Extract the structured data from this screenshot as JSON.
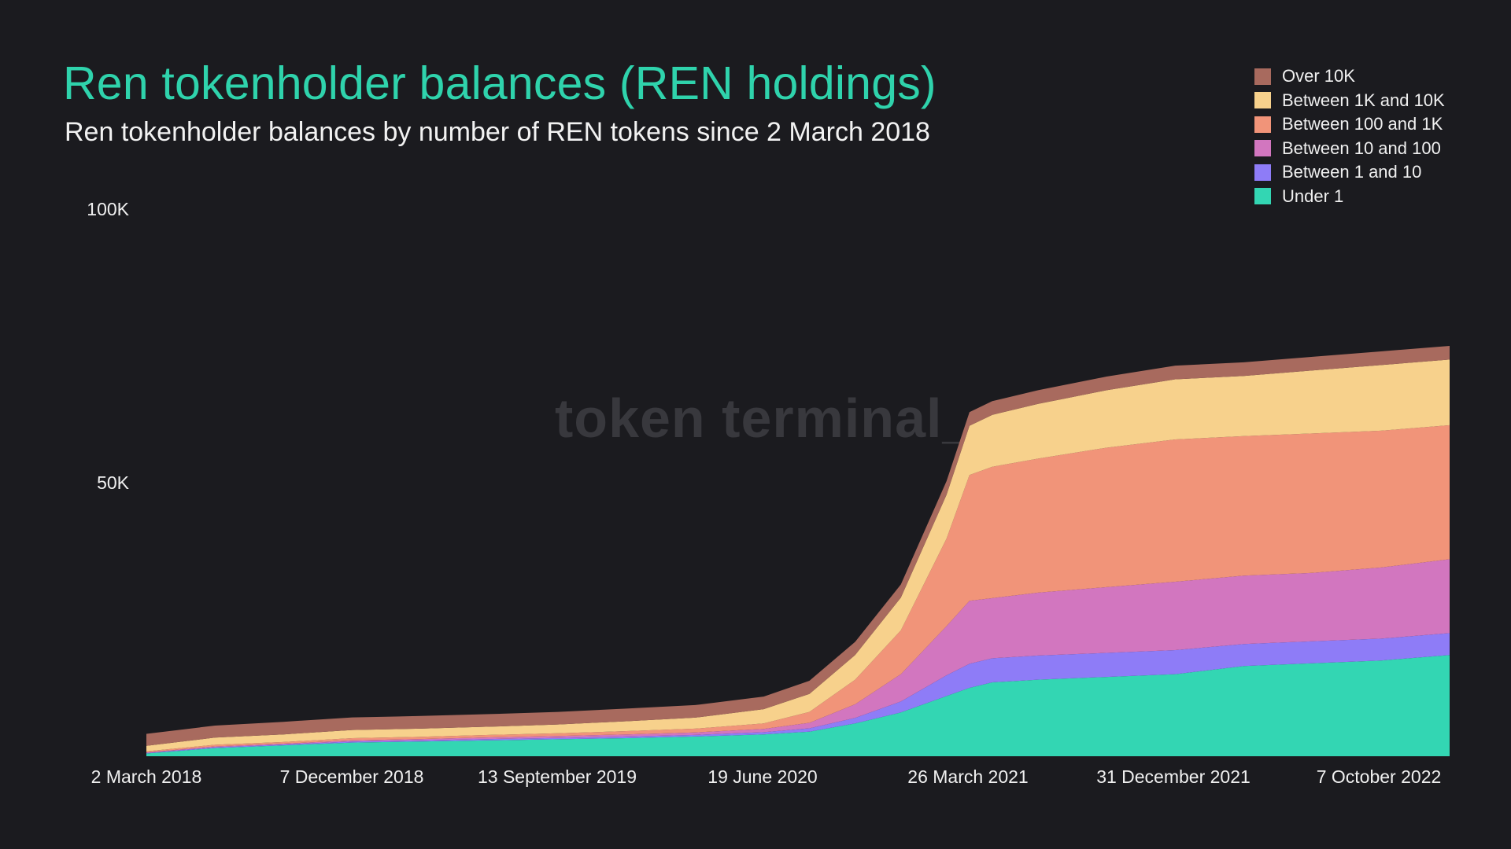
{
  "title": "Ren tokenholder balances (REN holdings)",
  "subtitle": "Ren tokenholder balances by number of REN tokens since 2 March 2018",
  "watermark": "token terminal_",
  "chart_data": {
    "type": "area",
    "stacked": true,
    "title": "Ren tokenholder balances (REN holdings)",
    "subtitle": "Ren tokenholder balances by number of REN tokens since 2 March 2018",
    "xlabel": "",
    "ylabel": "",
    "ylim": [
      0,
      100000
    ],
    "y_ticks": [
      50000,
      100000
    ],
    "y_tick_labels": [
      "50K",
      "100K"
    ],
    "x_tick_labels": [
      "2 March 2018",
      "7 December 2018",
      "13 September 2019",
      "19 June 2020",
      "26 March 2021",
      "31 December 2021",
      "7 October 2022"
    ],
    "grid": false,
    "legend_position": "top-right",
    "x": [
      "2018-03",
      "2018-06",
      "2018-09",
      "2018-12",
      "2019-03",
      "2019-06",
      "2019-09",
      "2019-12",
      "2020-03",
      "2020-06",
      "2020-08",
      "2020-10",
      "2020-12",
      "2021-02",
      "2021-03",
      "2021-04",
      "2021-06",
      "2021-09",
      "2021-12",
      "2022-03",
      "2022-06",
      "2022-09",
      "2022-12"
    ],
    "series": [
      {
        "name": "Under 1",
        "color": "#33d6b3",
        "values": [
          500,
          1500,
          2000,
          2500,
          2700,
          2900,
          3100,
          3300,
          3600,
          4000,
          4500,
          6000,
          8000,
          11000,
          12500,
          13500,
          14000,
          14500,
          15000,
          16500,
          17000,
          17500,
          18500
        ]
      },
      {
        "name": "Between 1 and 10",
        "color": "#8e7cf7",
        "values": [
          100,
          150,
          150,
          200,
          200,
          250,
          250,
          300,
          300,
          400,
          600,
          1000,
          2000,
          3800,
          4400,
          4400,
          4400,
          4400,
          4400,
          4000,
          4000,
          4000,
          4000
        ]
      },
      {
        "name": "Between 10 and 100",
        "color": "#d276bf",
        "values": [
          100,
          150,
          150,
          200,
          250,
          300,
          350,
          400,
          450,
          600,
          1000,
          2500,
          5000,
          9000,
          11500,
          11000,
          11500,
          12000,
          12500,
          12500,
          12500,
          13000,
          13500
        ]
      },
      {
        "name": "Between 100 and 1K",
        "color": "#f19479",
        "values": [
          200,
          300,
          300,
          400,
          400,
          450,
          500,
          600,
          700,
          1000,
          2000,
          4500,
          8000,
          16000,
          23000,
          24000,
          24500,
          25500,
          26000,
          25500,
          25500,
          25000,
          24500
        ]
      },
      {
        "name": "Between 1K and 10K",
        "color": "#f7d18c",
        "values": [
          1000,
          1300,
          1400,
          1500,
          1500,
          1500,
          1600,
          1800,
          2000,
          2600,
          3300,
          4500,
          6000,
          8000,
          9000,
          9500,
          10000,
          10500,
          11000,
          11000,
          11500,
          12000,
          12000
        ]
      },
      {
        "name": "Over 10K",
        "color": "#a86a5e",
        "values": [
          2200,
          2200,
          2300,
          2300,
          2300,
          2300,
          2300,
          2300,
          2300,
          2300,
          2400,
          2400,
          2400,
          2500,
          2500,
          2500,
          2500,
          2500,
          2500,
          2500,
          2500,
          2500,
          2500
        ]
      }
    ]
  }
}
